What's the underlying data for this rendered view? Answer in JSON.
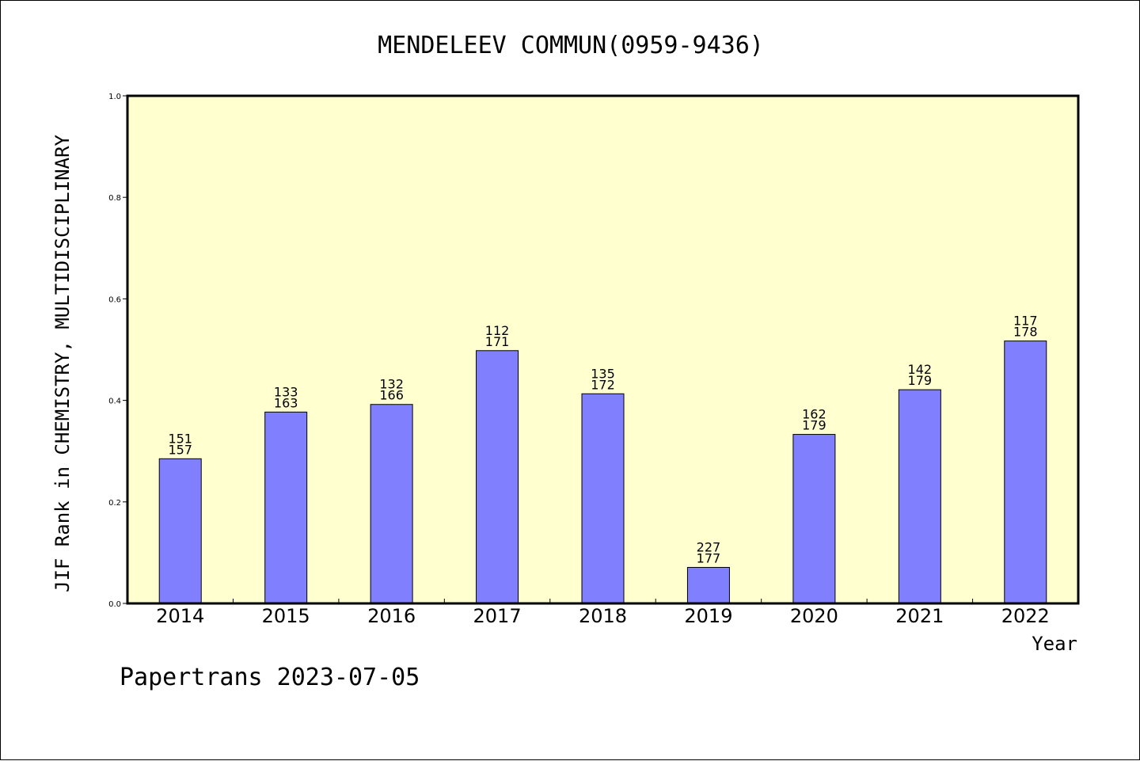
{
  "chart_data": {
    "type": "bar",
    "title": "MENDELEEV COMMUN(0959-9436)",
    "xlabel": "Year",
    "ylabel": "JIF Rank in CHEMISTRY, MULTIDISCIPLINARY",
    "ylim": [
      0,
      1.0
    ],
    "yticks": [
      "0.0",
      "0.2",
      "0.4",
      "0.6",
      "0.8",
      "1.0"
    ],
    "categories": [
      "2014",
      "2015",
      "2016",
      "2017",
      "2018",
      "2019",
      "2020",
      "2021",
      "2022"
    ],
    "values": [
      0.285,
      0.377,
      0.392,
      0.498,
      0.413,
      0.071,
      0.333,
      0.421,
      0.517
    ],
    "rank_labels": [
      [
        "151",
        "157"
      ],
      [
        "133",
        "163"
      ],
      [
        "132",
        "166"
      ],
      [
        "112",
        "171"
      ],
      [
        "135",
        "172"
      ],
      [
        "227",
        "177"
      ],
      [
        "162",
        "179"
      ],
      [
        "142",
        "179"
      ],
      [
        "117",
        "178"
      ]
    ],
    "grid": false,
    "colors": {
      "plot_background": "#ffffd0",
      "bar_fill": "#8080ff",
      "bar_stroke": "#000000"
    }
  },
  "footer": {
    "text": "Papertrans 2023-07-05"
  }
}
